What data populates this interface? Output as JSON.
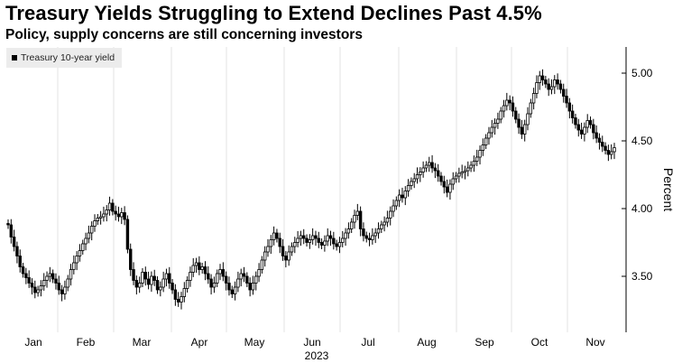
{
  "title": "Treasury Yields Struggling to Extend Declines Past 4.5%",
  "subtitle": "Policy, supply concerns are still concerning investors",
  "chart_data": {
    "type": "candlestick",
    "title": "Treasury Yields Struggling to Extend Declines Past 4.5%",
    "subtitle": "Policy, supply concerns are still concerning investors",
    "ylabel": "Percent",
    "xlabel": "2023",
    "ylim": [
      3.2,
      5.2
    ],
    "yticks": [
      3.5,
      4.0,
      4.5,
      5.0
    ],
    "ytick_labels": [
      "3.50",
      "4.00",
      "4.50",
      "5.00"
    ],
    "xticks": [
      "Jan",
      "Feb",
      "Mar",
      "Apr",
      "May",
      "Jun",
      "Jul",
      "Aug",
      "Sep",
      "Oct",
      "Nov"
    ],
    "x_year_label": "2023",
    "grid": "vertical",
    "legend": "top-left",
    "series": [
      {
        "name": "Treasury 10-year yield",
        "color": "#000000",
        "values": [
          3.88,
          3.79,
          3.72,
          3.65,
          3.57,
          3.52,
          3.49,
          3.45,
          3.42,
          3.38,
          3.4,
          3.43,
          3.47,
          3.5,
          3.52,
          3.48,
          3.45,
          3.4,
          3.37,
          3.42,
          3.48,
          3.55,
          3.6,
          3.65,
          3.69,
          3.74,
          3.78,
          3.82,
          3.87,
          3.91,
          3.93,
          3.94,
          3.96,
          3.99,
          4.04,
          3.98,
          3.96,
          3.94,
          3.97,
          3.92,
          3.7,
          3.55,
          3.47,
          3.42,
          3.45,
          3.53,
          3.48,
          3.44,
          3.5,
          3.47,
          3.4,
          3.42,
          3.48,
          3.52,
          3.45,
          3.4,
          3.33,
          3.31,
          3.35,
          3.41,
          3.47,
          3.53,
          3.58,
          3.6,
          3.55,
          3.57,
          3.52,
          3.48,
          3.42,
          3.45,
          3.52,
          3.55,
          3.5,
          3.45,
          3.4,
          3.37,
          3.42,
          3.48,
          3.52,
          3.5,
          3.45,
          3.4,
          3.45,
          3.5,
          3.55,
          3.62,
          3.68,
          3.72,
          3.77,
          3.82,
          3.78,
          3.72,
          3.65,
          3.62,
          3.68,
          3.72,
          3.75,
          3.78,
          3.8,
          3.78,
          3.75,
          3.77,
          3.8,
          3.78,
          3.75,
          3.73,
          3.76,
          3.8,
          3.78,
          3.74,
          3.72,
          3.75,
          3.78,
          3.82,
          3.85,
          3.9,
          3.95,
          3.98,
          3.85,
          3.8,
          3.78,
          3.77,
          3.8,
          3.82,
          3.85,
          3.88,
          3.9,
          3.93,
          3.98,
          4.02,
          4.06,
          4.1,
          4.08,
          4.13,
          4.17,
          4.2,
          4.22,
          4.25,
          4.27,
          4.3,
          4.32,
          4.34,
          4.3,
          4.28,
          4.24,
          4.2,
          4.16,
          4.12,
          4.18,
          4.22,
          4.24,
          4.26,
          4.27,
          4.28,
          4.3,
          4.32,
          4.35,
          4.38,
          4.43,
          4.47,
          4.52,
          4.56,
          4.6,
          4.63,
          4.66,
          4.72,
          4.76,
          4.8,
          4.78,
          4.72,
          4.66,
          4.6,
          4.55,
          4.62,
          4.7,
          4.78,
          4.85,
          4.93,
          4.98,
          4.95,
          4.92,
          4.88,
          4.9,
          4.95,
          4.92,
          4.88,
          4.83,
          4.78,
          4.72,
          4.67,
          4.62,
          4.58,
          4.55,
          4.6,
          4.65,
          4.62,
          4.56,
          4.52,
          4.49,
          4.46,
          4.43,
          4.4,
          4.42,
          4.45
        ]
      }
    ]
  },
  "legend_label": "Treasury 10-year yield"
}
